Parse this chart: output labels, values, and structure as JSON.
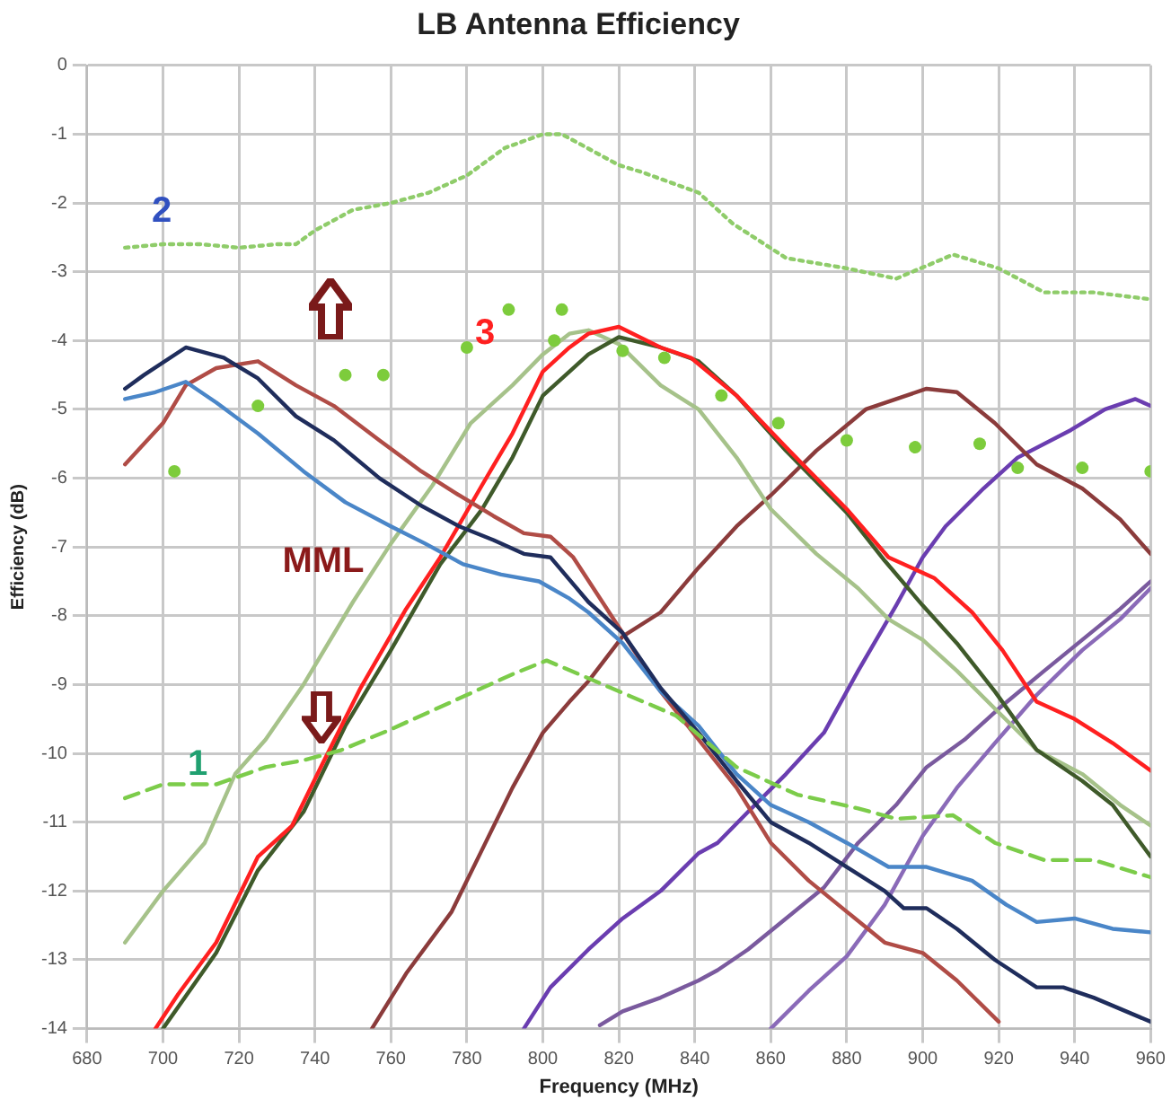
{
  "chart_data": {
    "type": "line",
    "title": "LB Antenna Efficiency",
    "xlabel": "Frequency (MHz)",
    "ylabel": "Efficiency (dB)",
    "xlim": [
      680,
      960
    ],
    "xticks": [
      680,
      700,
      720,
      740,
      760,
      780,
      800,
      820,
      840,
      860,
      880,
      900,
      920,
      940,
      960
    ],
    "ylim": [
      -14,
      0
    ],
    "yticks": [
      -14,
      -13,
      -12,
      -11,
      -10,
      -9,
      -8,
      -7,
      -6,
      -5,
      -4,
      -3,
      -2,
      -1,
      0
    ],
    "grid": true,
    "legend": false,
    "annotations": [
      "2",
      "3",
      "MML",
      "1"
    ],
    "series": [
      {
        "line_style": "dotted",
        "color": "#8fcc6a",
        "x": [
          690,
          700,
          710,
          720,
          730,
          735,
          740,
          750,
          760,
          770,
          780,
          790,
          800,
          805,
          810,
          820,
          826,
          841,
          850,
          864,
          880,
          893,
          908,
          920,
          932,
          945,
          960
        ],
        "values": [
          -2.65,
          -2.6,
          -2.6,
          -2.65,
          -2.6,
          -2.6,
          -2.4,
          -2.1,
          -2.0,
          -1.85,
          -1.6,
          -1.2,
          -1.0,
          -1.0,
          -1.15,
          -1.45,
          -1.55,
          -1.85,
          -2.3,
          -2.8,
          -2.95,
          -3.1,
          -2.75,
          -2.95,
          -3.3,
          -3.3,
          -3.4
        ]
      },
      {
        "type": "scatter",
        "marker": "circle",
        "color": "#7dcc3c",
        "x": [
          703,
          725,
          748,
          758,
          780,
          791,
          803,
          805,
          821,
          832,
          847,
          862,
          880,
          898,
          915,
          925,
          942,
          960
        ],
        "values": [
          -5.9,
          -4.95,
          -4.5,
          -4.5,
          -4.1,
          -3.55,
          -4.0,
          -3.55,
          -4.15,
          -4.25,
          -4.8,
          -5.2,
          -5.45,
          -5.55,
          -5.5,
          -5.85,
          -5.85,
          -5.9
        ]
      },
      {
        "line_style": "dashed",
        "color": "#7ccc4a",
        "x": [
          690,
          700,
          714,
          727,
          737,
          747,
          760,
          776,
          792,
          801,
          818,
          835,
          851,
          867,
          883,
          893,
          908,
          919,
          932,
          945,
          960
        ],
        "values": [
          -10.65,
          -10.45,
          -10.45,
          -10.2,
          -10.1,
          -9.95,
          -9.65,
          -9.25,
          -8.85,
          -8.65,
          -9.05,
          -9.45,
          -10.2,
          -10.6,
          -10.8,
          -10.95,
          -10.9,
          -11.3,
          -11.55,
          -11.55,
          -11.8
        ]
      },
      {
        "color": "#1f2d5c",
        "x": [
          690,
          695,
          706,
          716,
          725,
          735,
          745,
          757,
          768,
          778,
          787,
          795,
          802,
          812,
          821,
          831,
          841,
          851,
          860,
          870,
          880,
          890,
          895,
          901,
          909,
          919,
          930,
          937,
          945,
          960
        ],
        "values": [
          -4.7,
          -4.5,
          -4.1,
          -4.25,
          -4.55,
          -5.1,
          -5.45,
          -6.0,
          -6.4,
          -6.7,
          -6.9,
          -7.1,
          -7.15,
          -7.8,
          -8.25,
          -9.05,
          -9.7,
          -10.4,
          -11.0,
          -11.3,
          -11.65,
          -12.0,
          -12.25,
          -12.25,
          -12.55,
          -13.0,
          -13.4,
          -13.4,
          -13.55,
          -13.9
        ]
      },
      {
        "color": "#4a86c8",
        "x": [
          690,
          698,
          706,
          714,
          725,
          737,
          748,
          760,
          769,
          779,
          789,
          799,
          807,
          812,
          821,
          831,
          841,
          851,
          860,
          870,
          880,
          891,
          901,
          913,
          922,
          930,
          940,
          950,
          960
        ],
        "values": [
          -4.85,
          -4.75,
          -4.6,
          -4.9,
          -5.35,
          -5.9,
          -6.35,
          -6.7,
          -6.95,
          -7.25,
          -7.4,
          -7.5,
          -7.75,
          -7.95,
          -8.4,
          -9.1,
          -9.6,
          -10.3,
          -10.75,
          -11.0,
          -11.3,
          -11.65,
          -11.65,
          -11.85,
          -12.2,
          -12.45,
          -12.4,
          -12.55,
          -12.6
        ]
      },
      {
        "color": "#b04c46",
        "x": [
          690,
          700,
          706,
          714,
          725,
          735,
          745,
          757,
          768,
          778,
          787,
          795,
          802,
          808,
          821,
          831,
          841,
          851,
          860,
          870,
          880,
          890,
          900,
          909,
          920
        ],
        "values": [
          -5.8,
          -5.2,
          -4.65,
          -4.4,
          -4.3,
          -4.65,
          -4.95,
          -5.45,
          -5.9,
          -6.25,
          -6.55,
          -6.8,
          -6.85,
          -7.15,
          -8.25,
          -9.1,
          -9.8,
          -10.5,
          -11.3,
          -11.85,
          -12.3,
          -12.75,
          -12.9,
          -13.3,
          -13.9
        ]
      },
      {
        "color": "#ff2020",
        "x": [
          698,
          704,
          714,
          725,
          734,
          742,
          752,
          764,
          773,
          784,
          792,
          800,
          807,
          812,
          820,
          831,
          839,
          851,
          864,
          880,
          891,
          903,
          913,
          921,
          930,
          940,
          950,
          960
        ],
        "values": [
          -14.0,
          -13.5,
          -12.75,
          -11.5,
          -11.05,
          -10.15,
          -9.05,
          -7.9,
          -7.15,
          -6.1,
          -5.35,
          -4.45,
          -4.1,
          -3.9,
          -3.8,
          -4.1,
          -4.25,
          -4.8,
          -5.55,
          -6.45,
          -7.15,
          -7.45,
          -7.95,
          -8.5,
          -9.25,
          -9.5,
          -9.85,
          -10.25
        ]
      },
      {
        "color": "#3f5a2a",
        "x": [
          700,
          714,
          725,
          737,
          748,
          760,
          773,
          784,
          792,
          800,
          807,
          812,
          820,
          831,
          841,
          851,
          864,
          880,
          890,
          900,
          909,
          919,
          930,
          942,
          950,
          960
        ],
        "values": [
          -14.0,
          -12.9,
          -11.7,
          -10.85,
          -9.6,
          -8.5,
          -7.25,
          -6.45,
          -5.7,
          -4.8,
          -4.45,
          -4.2,
          -3.95,
          -4.1,
          -4.3,
          -4.8,
          -5.6,
          -6.5,
          -7.2,
          -7.85,
          -8.4,
          -9.1,
          -9.95,
          -10.4,
          -10.75,
          -11.5
        ]
      },
      {
        "color": "#a6c28a",
        "x": [
          690,
          700,
          711,
          719,
          727,
          737,
          750,
          760,
          771,
          781,
          792,
          800,
          807,
          812,
          820,
          831,
          841,
          851,
          860,
          872,
          883,
          891,
          900,
          909,
          919,
          930,
          942,
          952,
          960
        ],
        "values": [
          -12.75,
          -12.0,
          -11.3,
          -10.3,
          -9.8,
          -9.0,
          -7.8,
          -6.95,
          -6.1,
          -5.2,
          -4.65,
          -4.2,
          -3.9,
          -3.85,
          -4.05,
          -4.65,
          -5.0,
          -5.7,
          -6.45,
          -7.1,
          -7.6,
          -8.05,
          -8.35,
          -8.8,
          -9.35,
          -9.95,
          -10.3,
          -10.75,
          -11.05
        ]
      },
      {
        "color": "#8b3b3b",
        "x": [
          755,
          764,
          776,
          784,
          792,
          800,
          807,
          812,
          821,
          831,
          841,
          851,
          860,
          872,
          885,
          901,
          909,
          919,
          930,
          942,
          952,
          960
        ],
        "values": [
          -14.0,
          -13.2,
          -12.3,
          -11.4,
          -10.5,
          -9.7,
          -9.25,
          -8.95,
          -8.3,
          -7.95,
          -7.3,
          -6.7,
          -6.25,
          -5.6,
          -5.0,
          -4.7,
          -4.75,
          -5.2,
          -5.8,
          -6.15,
          -6.6,
          -7.1
        ]
      },
      {
        "color": "#6a3db0",
        "x": [
          795,
          802,
          812,
          821,
          831,
          841,
          846,
          854,
          864,
          874,
          883,
          893,
          900,
          906,
          916,
          925,
          939,
          948,
          956,
          960
        ],
        "values": [
          -14.0,
          -13.4,
          -12.85,
          -12.4,
          -12.0,
          -11.45,
          -11.3,
          -10.85,
          -10.3,
          -9.7,
          -8.8,
          -7.85,
          -7.15,
          -6.7,
          -6.15,
          -5.7,
          -5.3,
          -5.0,
          -4.85,
          -4.95
        ]
      },
      {
        "color": "#7a5a9e",
        "x": [
          815,
          821,
          831,
          841,
          846,
          854,
          864,
          874,
          883,
          893,
          901,
          911,
          920,
          932,
          942,
          952,
          960
        ],
        "values": [
          -13.95,
          -13.75,
          -13.55,
          -13.3,
          -13.15,
          -12.85,
          -12.4,
          -11.95,
          -11.3,
          -10.75,
          -10.2,
          -9.8,
          -9.35,
          -8.8,
          -8.35,
          -7.9,
          -7.5
        ]
      },
      {
        "color": "#8a6ab8",
        "x": [
          860,
          870,
          880,
          890,
          900,
          909,
          919,
          930,
          942,
          952,
          960
        ],
        "values": [
          -14.0,
          -13.45,
          -12.95,
          -12.2,
          -11.2,
          -10.5,
          -9.85,
          -9.15,
          -8.5,
          -8.05,
          -7.6
        ]
      }
    ]
  }
}
